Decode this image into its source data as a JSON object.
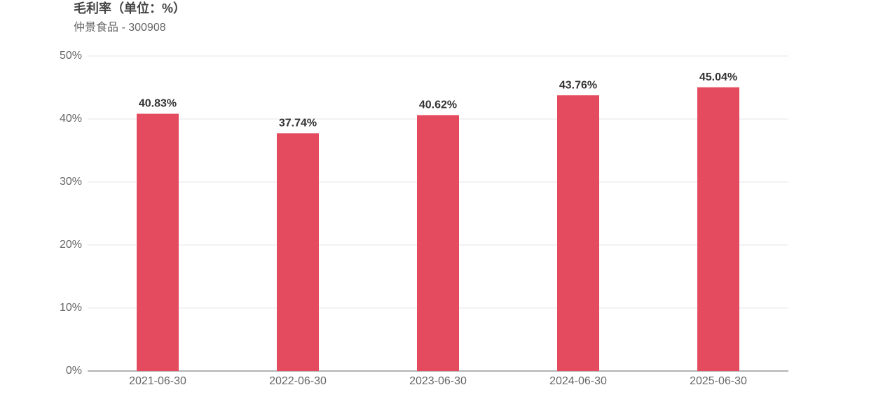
{
  "chart_data": {
    "type": "bar",
    "title": "毛利率（单位：%）",
    "subtitle": "仲景食品 - 300908",
    "categories": [
      "2021-06-30",
      "2022-06-30",
      "2023-06-30",
      "2024-06-30",
      "2025-06-30"
    ],
    "values": [
      40.83,
      37.74,
      40.62,
      43.76,
      45.04
    ],
    "value_labels": [
      "40.83%",
      "37.74%",
      "40.62%",
      "43.76%",
      "45.04%"
    ],
    "color": "#e54b5f",
    "ylim": [
      0,
      50
    ],
    "yticks": [
      {
        "value": 0,
        "label": "0%"
      },
      {
        "value": 10,
        "label": "10%"
      },
      {
        "value": 20,
        "label": "20%"
      },
      {
        "value": 30,
        "label": "30%"
      },
      {
        "value": 40,
        "label": "40%"
      },
      {
        "value": 50,
        "label": "50%"
      }
    ],
    "grid": true
  }
}
